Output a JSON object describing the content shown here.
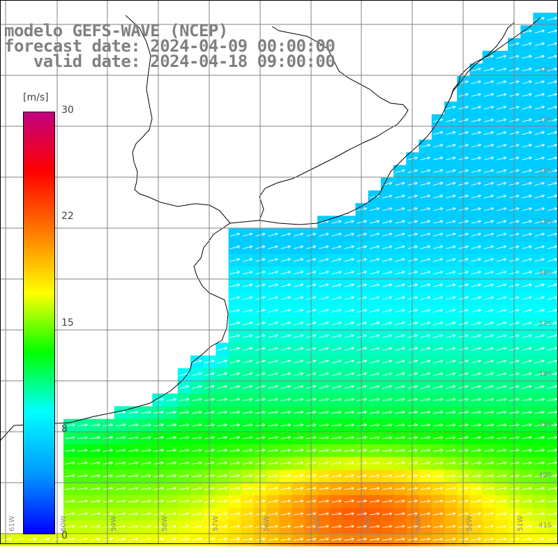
{
  "header": {
    "line1": "modelo GEFS-WAVE (NCEP)",
    "line2": "forecast date: 2024-04-09 00:00:00",
    "line3": "   valid date: 2024-04-18 09:00:00"
  },
  "colorbar": {
    "unit": "[m/s]",
    "ticks": [
      "30",
      "22",
      "15",
      "8",
      "0"
    ],
    "tick_values": [
      30,
      22,
      15,
      8,
      0
    ],
    "min": 0,
    "max": 30,
    "colors": [
      "#0000ff",
      "#0098ff",
      "#00ffff",
      "#00ff00",
      "#ffff00",
      "#ff8000",
      "#ff0000",
      "#c00080"
    ]
  },
  "grid": {
    "lat_labels": [
      "32S",
      "33S",
      "34S",
      "35S",
      "36S",
      "37S",
      "38S",
      "39S",
      "40S",
      "41S"
    ],
    "lon_labels": [
      "61W",
      "60W",
      "59W",
      "58W",
      "57W",
      "56W",
      "55W",
      "54W",
      "53W",
      "52W",
      "51W"
    ]
  },
  "map": {
    "field": "wind speed with direction arrows",
    "land_color": "#ffffff",
    "coast_color": "#000000",
    "grid_color": "#808080",
    "arrow_color": "#ffffff"
  }
}
